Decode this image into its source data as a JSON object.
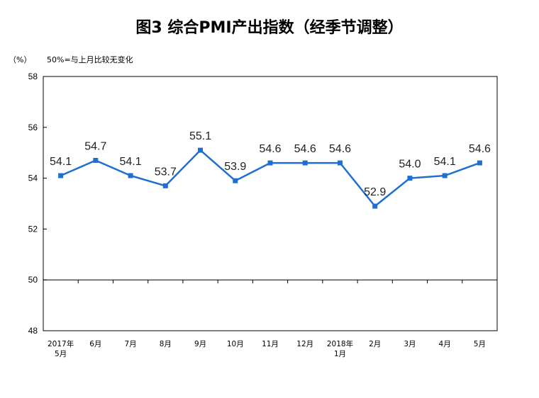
{
  "title": "图3 综合PMI产出指数（经季节调整）",
  "unit_label": "（%）",
  "note": "50%=与上月比较无变化",
  "chart_data": {
    "type": "line",
    "title": "图3 综合PMI产出指数（经季节调整）",
    "ylabel": "（%）",
    "annotation": "50%=与上月比较无变化",
    "ylim": [
      48,
      58
    ],
    "yticks": [
      48,
      50,
      52,
      54,
      56,
      58
    ],
    "reference_line": 50,
    "grid": false,
    "legend": "none",
    "line_color": "#1f6fd0",
    "categories": [
      [
        "2017年",
        "5月"
      ],
      [
        "6月"
      ],
      [
        "7月"
      ],
      [
        "8月"
      ],
      [
        "9月"
      ],
      [
        "10月"
      ],
      [
        "11月"
      ],
      [
        "12月"
      ],
      [
        "2018年",
        "1月"
      ],
      [
        "2月"
      ],
      [
        "3月"
      ],
      [
        "4月"
      ],
      [
        "5月"
      ]
    ],
    "series": [
      {
        "values": [
          54.1,
          54.7,
          54.1,
          53.7,
          55.1,
          53.9,
          54.6,
          54.6,
          54.6,
          52.9,
          54.0,
          54.1,
          54.6
        ],
        "labels": [
          "54.1",
          "54.7",
          "54.1",
          "53.7",
          "55.1",
          "53.9",
          "54.6",
          "54.6",
          "54.6",
          "52.9",
          "54.0",
          "54.1",
          "54.6"
        ]
      }
    ]
  }
}
